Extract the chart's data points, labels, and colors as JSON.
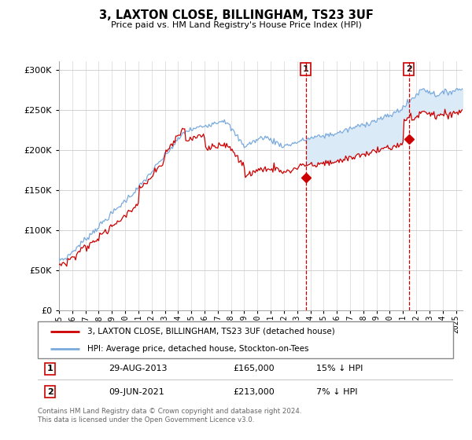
{
  "title": "3, LAXTON CLOSE, BILLINGHAM, TS23 3UF",
  "subtitle": "Price paid vs. HM Land Registry's House Price Index (HPI)",
  "legend_line1": "3, LAXTON CLOSE, BILLINGHAM, TS23 3UF (detached house)",
  "legend_line2": "HPI: Average price, detached house, Stockton-on-Tees",
  "sale1_date": "29-AUG-2013",
  "sale1_price": "£165,000",
  "sale1_hpi": "15% ↓ HPI",
  "sale1_year": 2013.65,
  "sale1_value": 165000,
  "sale2_date": "09-JUN-2021",
  "sale2_price": "£213,000",
  "sale2_hpi": "7% ↓ HPI",
  "sale2_year": 2021.44,
  "sale2_value": 213000,
  "footer": "Contains HM Land Registry data © Crown copyright and database right 2024.\nThis data is licensed under the Open Government Licence v3.0.",
  "hpi_color": "#7aaadd",
  "price_color": "#cc0000",
  "shading_color": "#daeaf7",
  "ylim": [
    0,
    310000
  ],
  "xlim_start": 1995.0,
  "xlim_end": 2025.5
}
